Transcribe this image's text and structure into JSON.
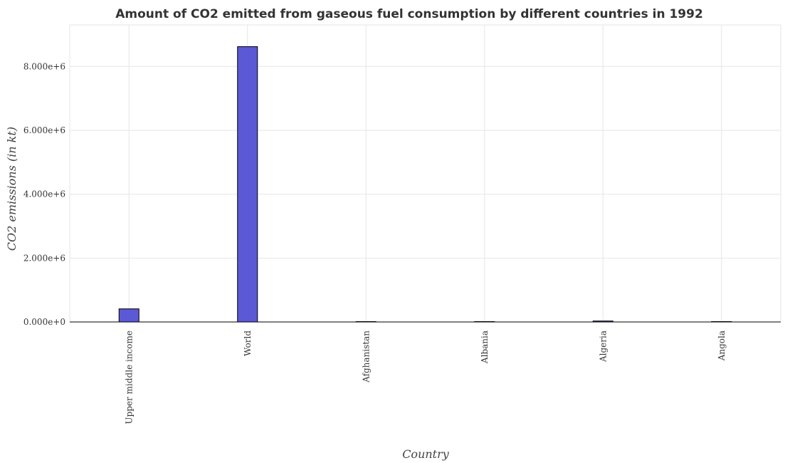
{
  "chart_data": {
    "type": "bar",
    "title": "Amount of CO2 emitted from gaseous fuel consumption by different countries in 1992",
    "xlabel": "Country",
    "ylabel": "CO2 emissions (in kt)",
    "categories": [
      "Upper middle income",
      "World",
      "Afghanistan",
      "Albania",
      "Algeria",
      "Angola"
    ],
    "values": [
      410000,
      8620000,
      1200,
      1000,
      30000,
      1500
    ],
    "ylim": [
      0,
      9300000
    ],
    "yticks": [
      0,
      2000000,
      4000000,
      6000000,
      8000000
    ],
    "ytick_labels": [
      "0.000e+0",
      "2.000e+6",
      "4.000e+6",
      "6.000e+6",
      "8.000e+6"
    ],
    "grid": true,
    "bar_color": "#5b59d6"
  }
}
